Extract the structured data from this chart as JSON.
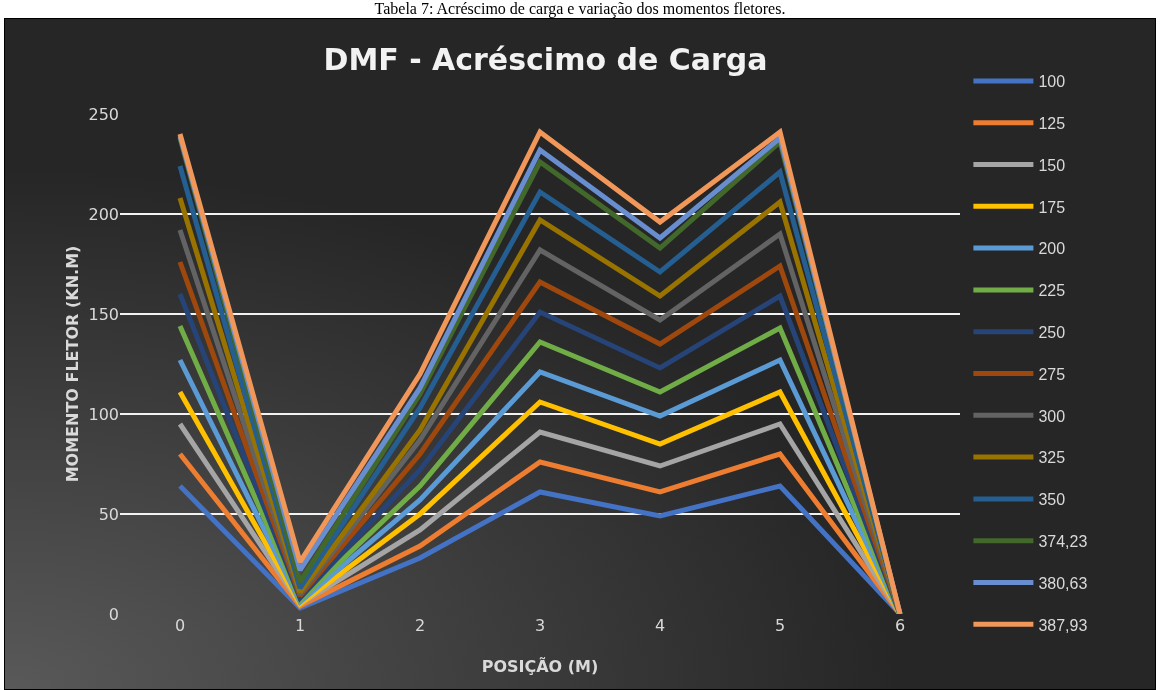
{
  "chart_data": {
    "type": "line",
    "title": "DMF - Acréscimo de Carga",
    "xlabel": "POSIÇÃO (M)",
    "ylabel": "MOMENTO FLETOR (KN.M)",
    "annotations": [
      "Tabela 7: Acréscimo de carga e variação dos momentos fletores."
    ],
    "categories": [
      "0",
      "1",
      "2",
      "3",
      "4",
      "5",
      "6"
    ],
    "ylim": [
      0,
      250
    ],
    "yticks": [
      0,
      50,
      100,
      150,
      200,
      250
    ],
    "grid": "y",
    "legend": "right",
    "marker": "none",
    "line_style": "solid",
    "series": [
      {
        "name": "100",
        "color": "#4472c4",
        "values": [
          64,
          3,
          28,
          61,
          49,
          64,
          0
        ]
      },
      {
        "name": "125",
        "color": "#ed7d31",
        "values": [
          80,
          4,
          34,
          76,
          61,
          80,
          0
        ]
      },
      {
        "name": "150",
        "color": "#a5a5a5",
        "values": [
          95,
          5,
          42,
          91,
          74,
          95,
          0
        ]
      },
      {
        "name": "175",
        "color": "#ffc000",
        "values": [
          111,
          5,
          50,
          106,
          85,
          111,
          0
        ]
      },
      {
        "name": "200",
        "color": "#5b9bd5",
        "values": [
          127,
          6,
          57,
          121,
          99,
          127,
          0
        ]
      },
      {
        "name": "225",
        "color": "#70ad47",
        "values": [
          144,
          7,
          64,
          136,
          111,
          143,
          0
        ]
      },
      {
        "name": "250",
        "color": "#264478",
        "values": [
          160,
          8,
          72,
          151,
          123,
          159,
          0
        ]
      },
      {
        "name": "275",
        "color": "#9e480e",
        "values": [
          176,
          9,
          80,
          166,
          135,
          174,
          0
        ]
      },
      {
        "name": "300",
        "color": "#636363",
        "values": [
          192,
          10,
          87,
          182,
          147,
          190,
          0
        ]
      },
      {
        "name": "325",
        "color": "#997300",
        "values": [
          208,
          11,
          92,
          197,
          159,
          206,
          0
        ]
      },
      {
        "name": "350",
        "color": "#255e91",
        "values": [
          224,
          13,
          103,
          211,
          171,
          221,
          0
        ]
      },
      {
        "name": "374,23",
        "color": "#43682b",
        "values": [
          238,
          16,
          110,
          226,
          183,
          236,
          0
        ]
      },
      {
        "name": "380,63",
        "color": "#698ed0",
        "values": [
          239,
          22,
          113,
          232,
          188,
          238,
          0
        ]
      },
      {
        "name": "387,93",
        "color": "#f1975a",
        "values": [
          240,
          26,
          120,
          241,
          196,
          241,
          0
        ]
      }
    ]
  }
}
